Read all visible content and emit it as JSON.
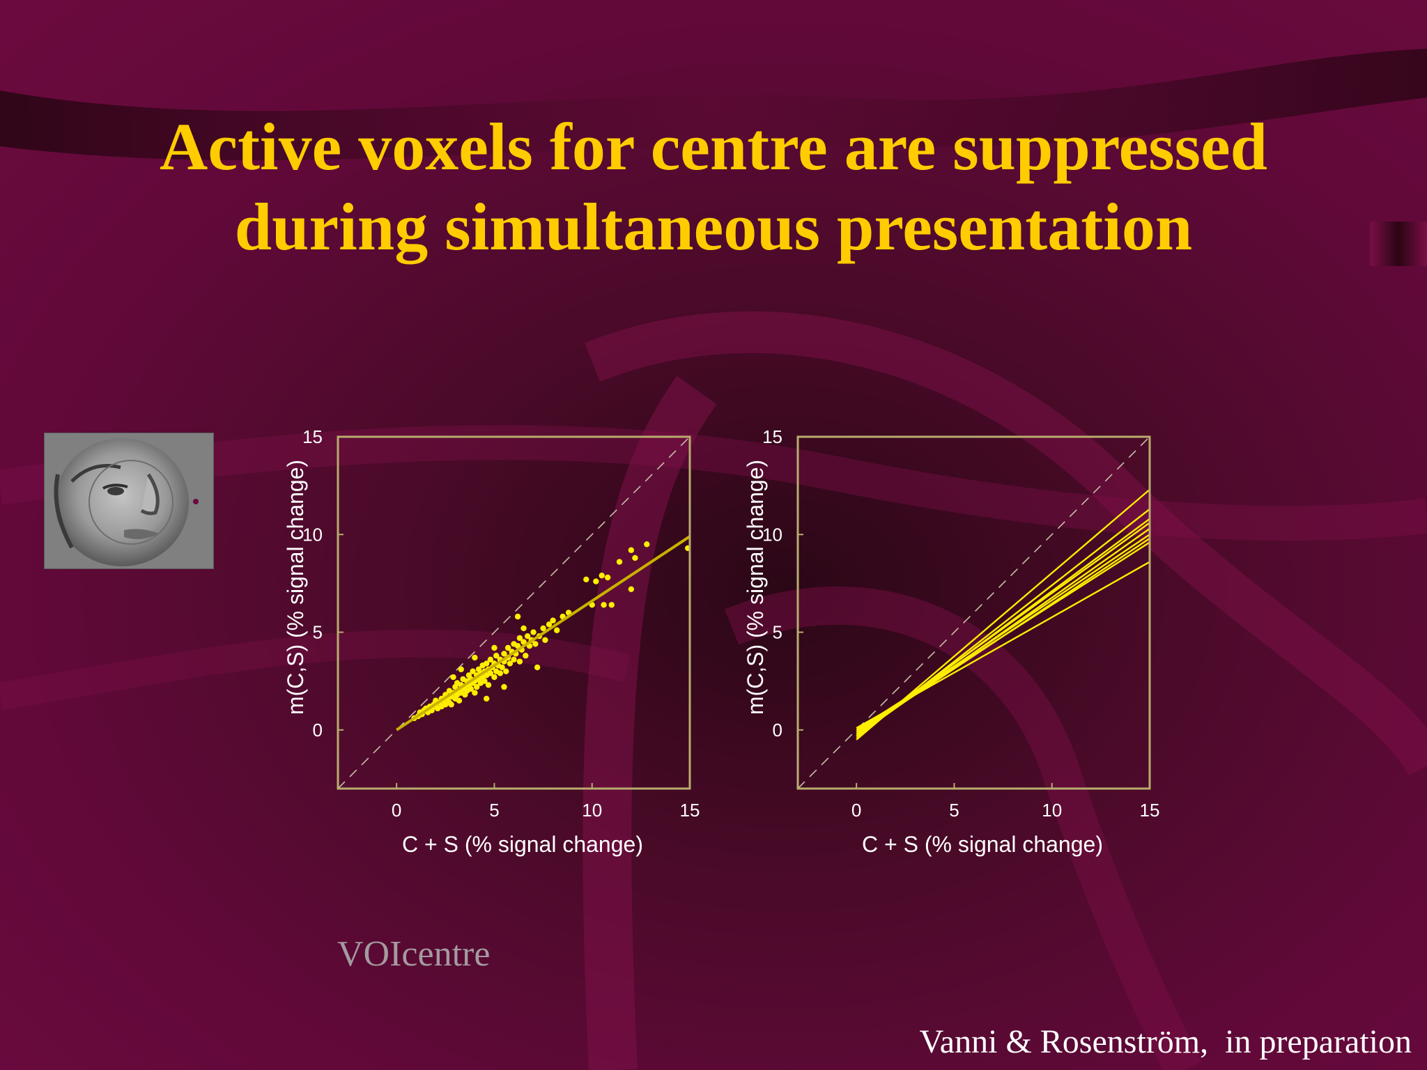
{
  "slide": {
    "title_line1": "Active voxels for centre are suppressed",
    "title_line2": "during simultaneous presentation",
    "voi_label": "VOIcentre",
    "citation": "Vanni & Rosenström,  in preparation"
  },
  "colors": {
    "title": "#ffcc00",
    "data": "#ffee00",
    "fit": "#c9b200",
    "axes_frame": "#b8ad6e",
    "identity_dash": "#c8c0a8",
    "background": "#62093a"
  },
  "chart_data": [
    {
      "type": "scatter",
      "title": "",
      "xlabel": "C + S (% signal change)",
      "ylabel": "m(C,S) (% signal change)",
      "xlim": [
        -3,
        15
      ],
      "ylim": [
        -3,
        15
      ],
      "xticks": [
        0,
        5,
        10,
        15
      ],
      "yticks": [
        0,
        5,
        10,
        15
      ],
      "xtick_labels": [
        "0",
        "5",
        "10",
        "15"
      ],
      "ytick_labels": [
        "0",
        "5",
        "10",
        "15"
      ],
      "grid": false,
      "identity_line": {
        "style": "dashed",
        "from": [
          -3,
          -3
        ],
        "to": [
          15,
          15
        ]
      },
      "fit_line": {
        "slope": 0.66,
        "intercept": 0.0,
        "from_x": 0,
        "to_x": 15
      },
      "points": [
        [
          0.9,
          0.6
        ],
        [
          1.1,
          0.7
        ],
        [
          1.2,
          0.9
        ],
        [
          1.3,
          0.8
        ],
        [
          1.4,
          1.0
        ],
        [
          1.5,
          1.1
        ],
        [
          1.6,
          0.9
        ],
        [
          1.7,
          1.2
        ],
        [
          1.8,
          1.0
        ],
        [
          1.9,
          1.3
        ],
        [
          2.0,
          1.2
        ],
        [
          2.0,
          1.5
        ],
        [
          2.1,
          1.1
        ],
        [
          2.2,
          1.4
        ],
        [
          2.3,
          1.6
        ],
        [
          2.3,
          1.2
        ],
        [
          2.4,
          1.5
        ],
        [
          2.5,
          1.3
        ],
        [
          2.5,
          1.8
        ],
        [
          2.6,
          1.6
        ],
        [
          2.7,
          1.4
        ],
        [
          2.7,
          2.0
        ],
        [
          2.8,
          1.7
        ],
        [
          2.8,
          1.3
        ],
        [
          2.9,
          1.9
        ],
        [
          3.0,
          1.6
        ],
        [
          3.0,
          2.2
        ],
        [
          3.1,
          1.8
        ],
        [
          3.1,
          2.4
        ],
        [
          3.2,
          2.0
        ],
        [
          3.2,
          1.5
        ],
        [
          3.3,
          2.3
        ],
        [
          3.3,
          1.9
        ],
        [
          3.4,
          2.1
        ],
        [
          3.4,
          2.6
        ],
        [
          3.5,
          2.2
        ],
        [
          3.5,
          1.8
        ],
        [
          3.6,
          2.5
        ],
        [
          3.6,
          2.0
        ],
        [
          3.7,
          2.8
        ],
        [
          3.7,
          2.3
        ],
        [
          3.8,
          2.1
        ],
        [
          3.8,
          2.6
        ],
        [
          3.9,
          2.4
        ],
        [
          3.9,
          3.0
        ],
        [
          4.0,
          2.5
        ],
        [
          4.0,
          1.9
        ],
        [
          4.1,
          2.8
        ],
        [
          4.1,
          2.2
        ],
        [
          4.2,
          3.1
        ],
        [
          4.2,
          2.6
        ],
        [
          4.3,
          2.4
        ],
        [
          4.3,
          2.9
        ],
        [
          4.4,
          3.3
        ],
        [
          4.4,
          2.7
        ],
        [
          4.5,
          2.5
        ],
        [
          4.5,
          3.0
        ],
        [
          4.6,
          3.4
        ],
        [
          4.6,
          2.8
        ],
        [
          4.7,
          2.3
        ],
        [
          4.7,
          3.1
        ],
        [
          4.8,
          2.9
        ],
        [
          4.8,
          3.6
        ],
        [
          4.9,
          3.2
        ],
        [
          5.0,
          2.7
        ],
        [
          5.0,
          3.4
        ],
        [
          5.1,
          3.0
        ],
        [
          5.1,
          3.8
        ],
        [
          5.2,
          3.3
        ],
        [
          5.3,
          2.9
        ],
        [
          5.3,
          3.6
        ],
        [
          5.4,
          3.2
        ],
        [
          5.5,
          3.9
        ],
        [
          5.5,
          3.5
        ],
        [
          5.6,
          3.0
        ],
        [
          5.7,
          3.7
        ],
        [
          5.7,
          4.2
        ],
        [
          5.8,
          3.4
        ],
        [
          5.9,
          4.0
        ],
        [
          6.0,
          3.6
        ],
        [
          6.0,
          4.4
        ],
        [
          6.1,
          3.9
        ],
        [
          6.2,
          4.3
        ],
        [
          6.3,
          3.5
        ],
        [
          6.3,
          4.7
        ],
        [
          6.4,
          4.1
        ],
        [
          6.5,
          4.5
        ],
        [
          6.6,
          3.8
        ],
        [
          6.7,
          4.8
        ],
        [
          6.8,
          4.3
        ],
        [
          6.9,
          4.6
        ],
        [
          7.0,
          5.0
        ],
        [
          7.1,
          4.4
        ],
        [
          7.2,
          3.2
        ],
        [
          7.3,
          4.8
        ],
        [
          7.5,
          5.2
        ],
        [
          7.6,
          4.6
        ],
        [
          7.8,
          5.4
        ],
        [
          8.0,
          5.6
        ],
        [
          8.2,
          5.1
        ],
        [
          8.5,
          5.8
        ],
        [
          8.8,
          6.0
        ],
        [
          4.6,
          1.6
        ],
        [
          5.5,
          2.2
        ],
        [
          6.2,
          5.8
        ],
        [
          6.5,
          5.2
        ],
        [
          3.3,
          3.1
        ],
        [
          2.9,
          2.7
        ],
        [
          4.0,
          3.7
        ],
        [
          5.0,
          4.2
        ],
        [
          9.7,
          7.7
        ],
        [
          10.2,
          7.6
        ],
        [
          10.5,
          7.9
        ],
        [
          10.8,
          7.8
        ],
        [
          10.0,
          6.4
        ],
        [
          10.6,
          6.4
        ],
        [
          11.0,
          6.4
        ],
        [
          12.0,
          7.2
        ],
        [
          12.2,
          8.8
        ],
        [
          11.4,
          8.6
        ],
        [
          12.0,
          9.2
        ],
        [
          12.8,
          9.5
        ],
        [
          14.9,
          9.3
        ]
      ]
    },
    {
      "type": "line",
      "title": "",
      "xlabel": "C + S (% signal change)",
      "ylabel": "m(C,S) (% signal change)",
      "xlim": [
        -3,
        15
      ],
      "ylim": [
        -3,
        15
      ],
      "xticks": [
        0,
        5,
        10,
        15
      ],
      "yticks": [
        0,
        5,
        10,
        15
      ],
      "xtick_labels": [
        "0",
        "5",
        "10",
        "15"
      ],
      "ytick_labels": [
        "0",
        "5",
        "10",
        "15"
      ],
      "grid": false,
      "identity_line": {
        "style": "dashed",
        "from": [
          -3,
          -3
        ],
        "to": [
          15,
          15
        ]
      },
      "lines": [
        {
          "x": [
            0,
            15
          ],
          "y": [
            -0.5,
            12.3
          ]
        },
        {
          "x": [
            0,
            15
          ],
          "y": [
            -0.4,
            11.3
          ]
        },
        {
          "x": [
            0,
            15
          ],
          "y": [
            -0.3,
            10.8
          ]
        },
        {
          "x": [
            0,
            15
          ],
          "y": [
            -0.2,
            10.6
          ]
        },
        {
          "x": [
            0,
            15
          ],
          "y": [
            -0.3,
            10.3
          ]
        },
        {
          "x": [
            0,
            15
          ],
          "y": [
            -0.1,
            10.0
          ]
        },
        {
          "x": [
            0,
            15
          ],
          "y": [
            -0.2,
            9.8
          ]
        },
        {
          "x": [
            0,
            15
          ],
          "y": [
            0.0,
            9.6
          ]
        },
        {
          "x": [
            0,
            15
          ],
          "y": [
            0.1,
            8.6
          ]
        }
      ]
    }
  ]
}
